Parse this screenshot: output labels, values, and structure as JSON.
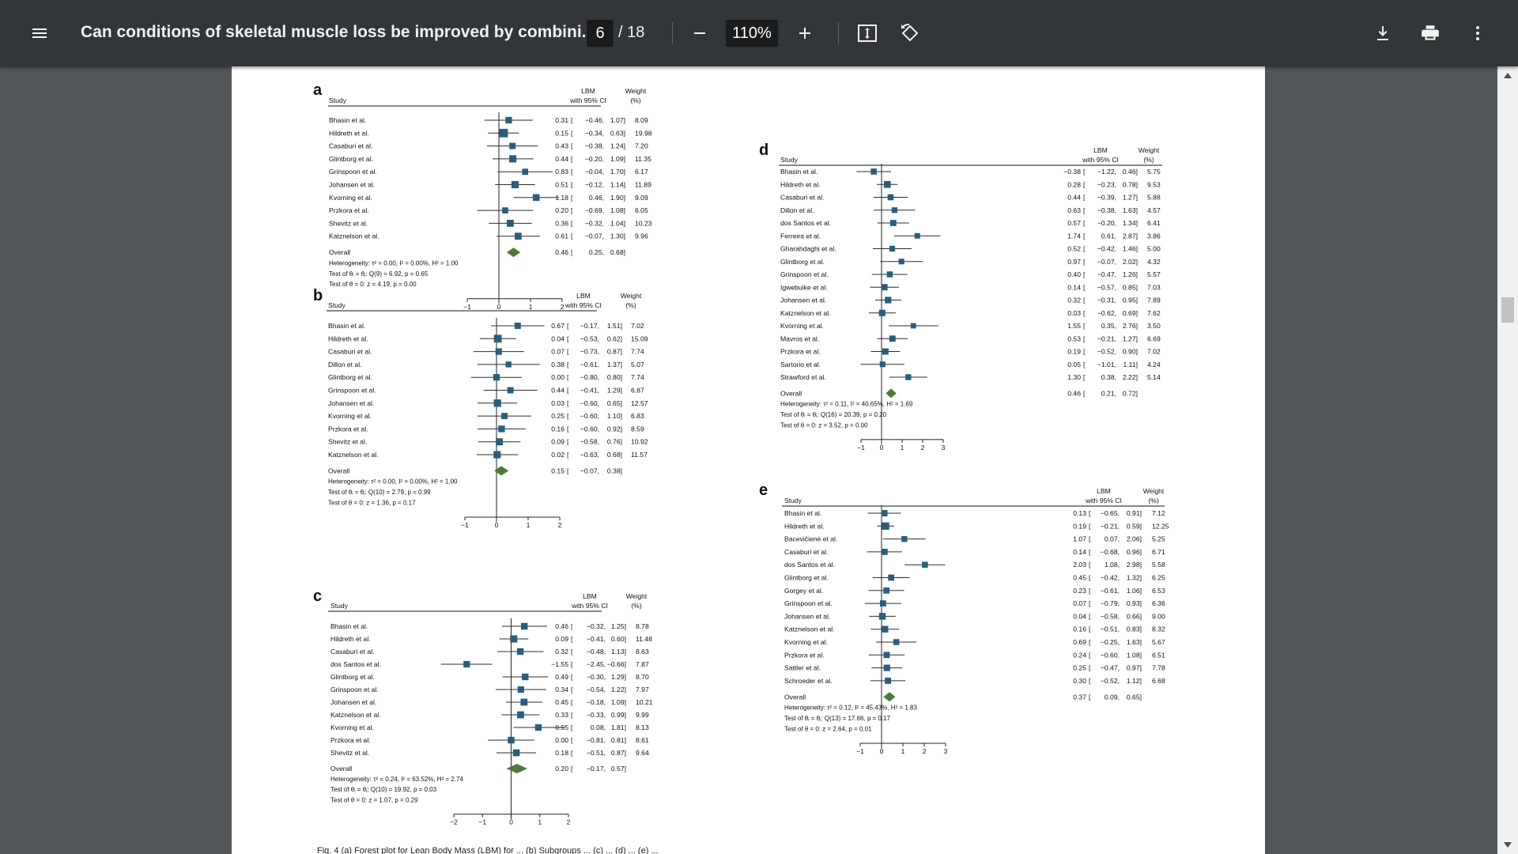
{
  "toolbar": {
    "title": "Can conditions of skeletal muscle loss be improved by combini...",
    "page_current": "6",
    "page_total": "/ 18",
    "zoom": "110%",
    "icons": [
      "menu-icon",
      "zoom-out-icon",
      "zoom-in-icon",
      "fit-page-icon",
      "rotate-icon",
      "download-icon",
      "print-icon",
      "more-vert-icon"
    ]
  },
  "chart_data": [
    {
      "type": "forest",
      "panel_label": "a",
      "study_header": "Study",
      "effect_header": "LBM",
      "ci_header": "with 95% CI",
      "weight_header": "Weight",
      "weight_unit": "(%)",
      "xlim": [
        -1,
        2
      ],
      "ticks": [
        -1,
        0,
        1,
        2
      ],
      "tick_labels": [
        "−1",
        "0",
        "1",
        "2"
      ],
      "studies": [
        {
          "name": "Bhasin et al.",
          "est": 0.31,
          "lo": -0.46,
          "hi": 1.07,
          "weight": "8.09",
          "est_txt": "0.31",
          "lo_txt": "−0.46,",
          "hi_txt": "1.07]"
        },
        {
          "name": "Hildreth et al.",
          "est": 0.15,
          "lo": -0.34,
          "hi": 0.63,
          "weight": "19.98",
          "est_txt": "0.15",
          "lo_txt": "−0.34,",
          "hi_txt": "0.63]"
        },
        {
          "name": "Casaburi et al.",
          "est": 0.43,
          "lo": -0.38,
          "hi": 1.24,
          "weight": "7.20",
          "est_txt": "0.43",
          "lo_txt": "−0.38,",
          "hi_txt": "1.24]"
        },
        {
          "name": "Glintborg et al.",
          "est": 0.44,
          "lo": -0.2,
          "hi": 1.09,
          "weight": "11.35",
          "est_txt": "0.44",
          "lo_txt": "−0.20,",
          "hi_txt": "1.09]"
        },
        {
          "name": "Grinspoon et al.",
          "est": 0.83,
          "lo": -0.04,
          "hi": 1.7,
          "weight": "6.17",
          "est_txt": "0.83",
          "lo_txt": "−0.04,",
          "hi_txt": "1.70]"
        },
        {
          "name": "Johansen et al.",
          "est": 0.51,
          "lo": -0.12,
          "hi": 1.14,
          "weight": "11.89",
          "est_txt": "0.51",
          "lo_txt": "−0.12,",
          "hi_txt": "1.14]"
        },
        {
          "name": "Kvorning et al.",
          "est": 1.18,
          "lo": 0.46,
          "hi": 1.9,
          "weight": "9.09",
          "est_txt": "1.18",
          "lo_txt": "0.46,",
          "hi_txt": "1.90]"
        },
        {
          "name": "Przkora et al.",
          "est": 0.2,
          "lo": -0.69,
          "hi": 1.08,
          "weight": "6.05",
          "est_txt": "0.20",
          "lo_txt": "−0.69,",
          "hi_txt": "1.08]"
        },
        {
          "name": "Shevitz et al.",
          "est": 0.36,
          "lo": -0.32,
          "hi": 1.04,
          "weight": "10.23",
          "est_txt": "0.36",
          "lo_txt": "−0.32,",
          "hi_txt": "1.04]"
        },
        {
          "name": "Katznelson et al.",
          "est": 0.61,
          "lo": -0.07,
          "hi": 1.3,
          "weight": "9.96",
          "est_txt": "0.61",
          "lo_txt": "−0.07,",
          "hi_txt": "1.30]"
        }
      ],
      "overall": {
        "name": "Overall",
        "est": 0.46,
        "lo": 0.25,
        "hi": 0.68,
        "est_txt": "0.46",
        "lo_txt": "0.25,",
        "hi_txt": "0.68]"
      },
      "stats": [
        "Heterogeneity: τ² = 0.00, I² = 0.00%, H² = 1.00",
        "Test of θᵢ = θⱼ: Q(9) = 6.92, p = 0.65",
        "Test of θ = 0: z = 4.19, p = 0.00"
      ]
    },
    {
      "type": "forest",
      "panel_label": "b",
      "study_header": "Study",
      "effect_header": "LBM",
      "ci_header": "with 95% CI",
      "weight_header": "Weight",
      "weight_unit": "(%)",
      "xlim": [
        -1,
        2
      ],
      "ticks": [
        -1,
        0,
        1,
        2
      ],
      "tick_labels": [
        "−1",
        "0",
        "1",
        "2"
      ],
      "studies": [
        {
          "name": "Bhasin et al.",
          "est": 0.67,
          "lo": -0.17,
          "hi": 1.51,
          "weight": "7.02",
          "est_txt": "0.67",
          "lo_txt": "−0.17,",
          "hi_txt": "1.51]"
        },
        {
          "name": "Hildreth et al.",
          "est": 0.04,
          "lo": -0.53,
          "hi": 0.62,
          "weight": "15.09",
          "est_txt": "0.04",
          "lo_txt": "−0.53,",
          "hi_txt": "0.62]"
        },
        {
          "name": "Casaburi et al.",
          "est": 0.07,
          "lo": -0.73,
          "hi": 0.87,
          "weight": "7.74",
          "est_txt": "0.07",
          "lo_txt": "−0.73,",
          "hi_txt": "0.87]"
        },
        {
          "name": "Dillon et al.",
          "est": 0.38,
          "lo": -0.61,
          "hi": 1.37,
          "weight": "5.07",
          "est_txt": "0.38",
          "lo_txt": "−0.61,",
          "hi_txt": "1.37]"
        },
        {
          "name": "Glintborg et al.",
          "est": 0.0,
          "lo": -0.8,
          "hi": 0.8,
          "weight": "7.74",
          "est_txt": "0.00",
          "lo_txt": "−0.80,",
          "hi_txt": "0.80]"
        },
        {
          "name": "Grinspoon et al.",
          "est": 0.44,
          "lo": -0.41,
          "hi": 1.29,
          "weight": "6.87",
          "est_txt": "0.44",
          "lo_txt": "−0.41,",
          "hi_txt": "1.29]"
        },
        {
          "name": "Johansen et al.",
          "est": 0.03,
          "lo": -0.6,
          "hi": 0.65,
          "weight": "12.57",
          "est_txt": "0.03",
          "lo_txt": "−0.60,",
          "hi_txt": "0.65]"
        },
        {
          "name": "Kvorning et al.",
          "est": 0.25,
          "lo": -0.6,
          "hi": 1.1,
          "weight": "6.83",
          "est_txt": "0.25",
          "lo_txt": "−0.60,",
          "hi_txt": "1.10]"
        },
        {
          "name": "Przkora et al.",
          "est": 0.16,
          "lo": -0.6,
          "hi": 0.92,
          "weight": "8.59",
          "est_txt": "0.16",
          "lo_txt": "−0.60,",
          "hi_txt": "0.92]"
        },
        {
          "name": "Shevitz et al.",
          "est": 0.09,
          "lo": -0.58,
          "hi": 0.76,
          "weight": "10.92",
          "est_txt": "0.09",
          "lo_txt": "−0.58,",
          "hi_txt": "0.76]"
        },
        {
          "name": "Katznelson et al.",
          "est": 0.02,
          "lo": -0.63,
          "hi": 0.68,
          "weight": "11.57",
          "est_txt": "0.02",
          "lo_txt": "−0.63,",
          "hi_txt": "0.68]"
        }
      ],
      "overall": {
        "name": "Overall",
        "est": 0.15,
        "lo": -0.07,
        "hi": 0.38,
        "est_txt": "0.15",
        "lo_txt": "−0.07,",
        "hi_txt": "0.38]"
      },
      "stats": [
        "Heterogeneity: τ² = 0.00, I² = 0.00%, H² = 1.00",
        "Test of θᵢ = θⱼ: Q(10) = 2.79, p = 0.99",
        "Test of θ = 0: z = 1.36, p = 0.17"
      ]
    },
    {
      "type": "forest",
      "panel_label": "c",
      "study_header": "Study",
      "effect_header": "LBM",
      "ci_header": "with 95% CI",
      "weight_header": "Weight",
      "weight_unit": "(%)",
      "xlim": [
        -2,
        2
      ],
      "ticks": [
        -2,
        -1,
        0,
        1,
        2
      ],
      "tick_labels": [
        "−2",
        "−1",
        "0",
        "1",
        "2"
      ],
      "studies": [
        {
          "name": "Bhasin et al.",
          "est": 0.46,
          "lo": -0.32,
          "hi": 1.25,
          "weight": "8.78",
          "est_txt": "0.46",
          "lo_txt": "−0.32,",
          "hi_txt": "1.25]"
        },
        {
          "name": "Hildreth et al.",
          "est": 0.09,
          "lo": -0.41,
          "hi": 0.6,
          "weight": "11.48",
          "est_txt": "0.09",
          "lo_txt": "−0.41,",
          "hi_txt": "0.60]"
        },
        {
          "name": "Casaburi et al.",
          "est": 0.32,
          "lo": -0.48,
          "hi": 1.13,
          "weight": "8.63",
          "est_txt": "0.32",
          "lo_txt": "−0.48,",
          "hi_txt": "1.13]"
        },
        {
          "name": "dos Santos et al.",
          "est": -1.55,
          "lo": -2.45,
          "hi": -0.66,
          "weight": "7.87",
          "est_txt": "−1.55",
          "lo_txt": "−2.45,",
          "hi_txt": "−0.66]"
        },
        {
          "name": "Glintborg et al.",
          "est": 0.49,
          "lo": -0.3,
          "hi": 1.29,
          "weight": "8.70",
          "est_txt": "0.49",
          "lo_txt": "−0.30,",
          "hi_txt": "1.29]"
        },
        {
          "name": "Grinspoon et al.",
          "est": 0.34,
          "lo": -0.54,
          "hi": 1.22,
          "weight": "7.97",
          "est_txt": "0.34",
          "lo_txt": "−0.54,",
          "hi_txt": "1.22]"
        },
        {
          "name": "Johansen et al.",
          "est": 0.45,
          "lo": -0.18,
          "hi": 1.09,
          "weight": "10.21",
          "est_txt": "0.45",
          "lo_txt": "−0.18,",
          "hi_txt": "1.09]"
        },
        {
          "name": "Katznelson et al.",
          "est": 0.33,
          "lo": -0.33,
          "hi": 0.99,
          "weight": "9.99",
          "est_txt": "0.33",
          "lo_txt": "−0.33,",
          "hi_txt": "0.99]"
        },
        {
          "name": "Kvorning et al.",
          "est": 0.95,
          "lo": 0.08,
          "hi": 1.81,
          "weight": "8.13",
          "est_txt": "0.95",
          "lo_txt": "0.08,",
          "hi_txt": "1.81]"
        },
        {
          "name": "Przkora et al.",
          "est": 0.0,
          "lo": -0.81,
          "hi": 0.81,
          "weight": "8.61",
          "est_txt": "0.00",
          "lo_txt": "−0.81,",
          "hi_txt": "0.81]"
        },
        {
          "name": "Shevitz et al.",
          "est": 0.18,
          "lo": -0.51,
          "hi": 0.87,
          "weight": "9.64",
          "est_txt": "0.18",
          "lo_txt": "−0.51,",
          "hi_txt": "0.87]"
        }
      ],
      "overall": {
        "name": "Overall",
        "est": 0.2,
        "lo": -0.17,
        "hi": 0.57,
        "est_txt": "0.20",
        "lo_txt": "−0.17,",
        "hi_txt": "0.57]"
      },
      "stats": [
        "Heterogeneity: τ² = 0.24, I² = 63.52%, H² = 2.74",
        "Test of θᵢ = θⱼ: Q(10) = 19.92, p = 0.03",
        "Test of θ = 0: z = 1.07, p = 0.29"
      ]
    },
    {
      "type": "forest",
      "panel_label": "d",
      "study_header": "Study",
      "effect_header": "LBM",
      "ci_header": "with 95% CI",
      "weight_header": "Weight",
      "weight_unit": "(%)",
      "xlim": [
        -1,
        3
      ],
      "ticks": [
        -1,
        0,
        1,
        2,
        3
      ],
      "tick_labels": [
        "−1",
        "0",
        "1",
        "2",
        "3"
      ],
      "studies": [
        {
          "name": "Bhasin et al.",
          "est": -0.38,
          "lo": -1.22,
          "hi": 0.46,
          "weight": "5.75",
          "est_txt": "−0.38",
          "lo_txt": "−1.22,",
          "hi_txt": "0.46]"
        },
        {
          "name": "Hildreth et al.",
          "est": 0.28,
          "lo": -0.23,
          "hi": 0.78,
          "weight": "9.53",
          "est_txt": "0.28",
          "lo_txt": "−0.23,",
          "hi_txt": "0.78]"
        },
        {
          "name": "Casaburi et al.",
          "est": 0.44,
          "lo": -0.39,
          "hi": 1.27,
          "weight": "5.88",
          "est_txt": "0.44",
          "lo_txt": "−0.39,",
          "hi_txt": "1.27]"
        },
        {
          "name": "Dillon et al.",
          "est": 0.63,
          "lo": -0.38,
          "hi": 1.63,
          "weight": "4.57",
          "est_txt": "0.63",
          "lo_txt": "−0.38,",
          "hi_txt": "1.63]"
        },
        {
          "name": "dos Santos et al.",
          "est": 0.57,
          "lo": -0.2,
          "hi": 1.34,
          "weight": "6.41",
          "est_txt": "0.57",
          "lo_txt": "−0.20,",
          "hi_txt": "1.34]"
        },
        {
          "name": "Ferreira et al.",
          "est": 1.74,
          "lo": 0.61,
          "hi": 2.87,
          "weight": "3.86",
          "est_txt": "1.74",
          "lo_txt": "0.61,",
          "hi_txt": "2.87]"
        },
        {
          "name": "Gharahdaghi et al.",
          "est": 0.52,
          "lo": -0.42,
          "hi": 1.46,
          "weight": "5.00",
          "est_txt": "0.52",
          "lo_txt": "−0.42,",
          "hi_txt": "1.46]"
        },
        {
          "name": "Glintborg et al.",
          "est": 0.97,
          "lo": -0.07,
          "hi": 2.02,
          "weight": "4.32",
          "est_txt": "0.97",
          "lo_txt": "−0.07,",
          "hi_txt": "2.02]"
        },
        {
          "name": "Grinspoon et al.",
          "est": 0.4,
          "lo": -0.47,
          "hi": 1.26,
          "weight": "5.57",
          "est_txt": "0.40",
          "lo_txt": "−0.47,",
          "hi_txt": "1.26]"
        },
        {
          "name": "Igwebuike et al.",
          "est": 0.14,
          "lo": -0.57,
          "hi": 0.85,
          "weight": "7.03",
          "est_txt": "0.14",
          "lo_txt": "−0.57,",
          "hi_txt": "0.85]"
        },
        {
          "name": "Johansen et al.",
          "est": 0.32,
          "lo": -0.31,
          "hi": 0.95,
          "weight": "7.89",
          "est_txt": "0.32",
          "lo_txt": "−0.31,",
          "hi_txt": "0.95]"
        },
        {
          "name": "Katznelson et al.",
          "est": 0.03,
          "lo": -0.62,
          "hi": 0.69,
          "weight": "7.62",
          "est_txt": "0.03",
          "lo_txt": "−0.62,",
          "hi_txt": "0.69]"
        },
        {
          "name": "Kvorning et al.",
          "est": 1.55,
          "lo": 0.35,
          "hi": 2.76,
          "weight": "3.50",
          "est_txt": "1.55",
          "lo_txt": "0.35,",
          "hi_txt": "2.76]"
        },
        {
          "name": "Mavros et al.",
          "est": 0.53,
          "lo": -0.21,
          "hi": 1.27,
          "weight": "6.69",
          "est_txt": "0.53",
          "lo_txt": "−0.21,",
          "hi_txt": "1.27]"
        },
        {
          "name": "Przkora et al.",
          "est": 0.19,
          "lo": -0.52,
          "hi": 0.9,
          "weight": "7.02",
          "est_txt": "0.19",
          "lo_txt": "−0.52,",
          "hi_txt": "0.90]"
        },
        {
          "name": "Sartorio et al.",
          "est": 0.05,
          "lo": -1.01,
          "hi": 1.11,
          "weight": "4.24",
          "est_txt": "0.05",
          "lo_txt": "−1.01,",
          "hi_txt": "1.11]"
        },
        {
          "name": "Strawford et al.",
          "est": 1.3,
          "lo": 0.38,
          "hi": 2.22,
          "weight": "5.14",
          "est_txt": "1.30",
          "lo_txt": "0.38,",
          "hi_txt": "2.22]"
        }
      ],
      "overall": {
        "name": "Overall",
        "est": 0.46,
        "lo": 0.21,
        "hi": 0.72,
        "est_txt": "0.46",
        "lo_txt": "0.21,",
        "hi_txt": "0.72]"
      },
      "stats": [
        "Heterogeneity: τ² = 0.11, I² = 40.65%, H² = 1.69",
        "Test of θᵢ = θⱼ: Q(16) = 20.39, p = 0.20",
        "Test of θ = 0: z = 3.52, p = 0.00"
      ]
    },
    {
      "type": "forest",
      "panel_label": "e",
      "study_header": "Study",
      "effect_header": "LBM",
      "ci_header": "with 95% CI",
      "weight_header": "Weight",
      "weight_unit": "(%)",
      "xlim": [
        -1,
        3
      ],
      "ticks": [
        -1,
        0,
        1,
        2,
        3
      ],
      "tick_labels": [
        "−1",
        "0",
        "1",
        "2",
        "3"
      ],
      "studies": [
        {
          "name": "Bhasin et al.",
          "est": 0.13,
          "lo": -0.65,
          "hi": 0.91,
          "weight": "7.12",
          "est_txt": "0.13",
          "lo_txt": "−0.65,",
          "hi_txt": "0.91]"
        },
        {
          "name": "Hildreth et al.",
          "est": 0.19,
          "lo": -0.21,
          "hi": 0.59,
          "weight": "12.25",
          "est_txt": "0.19",
          "lo_txt": "−0.21,",
          "hi_txt": "0.59]"
        },
        {
          "name": "Bacevičienė et al.",
          "est": 1.07,
          "lo": 0.07,
          "hi": 2.06,
          "weight": "5.25",
          "est_txt": "1.07",
          "lo_txt": "0.07,",
          "hi_txt": "2.06]"
        },
        {
          "name": "Casaburi et al.",
          "est": 0.14,
          "lo": -0.68,
          "hi": 0.96,
          "weight": "6.71",
          "est_txt": "0.14",
          "lo_txt": "−0.68,",
          "hi_txt": "0.96]"
        },
        {
          "name": "dos Santos et al.",
          "est": 2.03,
          "lo": 1.08,
          "hi": 2.98,
          "weight": "5.58",
          "est_txt": "2.03",
          "lo_txt": "1.08,",
          "hi_txt": "2.98]"
        },
        {
          "name": "Glintborg et al.",
          "est": 0.45,
          "lo": -0.42,
          "hi": 1.32,
          "weight": "6.25",
          "est_txt": "0.45",
          "lo_txt": "−0.42,",
          "hi_txt": "1.32]"
        },
        {
          "name": "Gorgey et al.",
          "est": 0.23,
          "lo": -0.61,
          "hi": 1.06,
          "weight": "6.53",
          "est_txt": "0.23",
          "lo_txt": "−0.61,",
          "hi_txt": "1.06]"
        },
        {
          "name": "Grinspoon et al.",
          "est": 0.07,
          "lo": -0.79,
          "hi": 0.93,
          "weight": "6.36",
          "est_txt": "0.07",
          "lo_txt": "−0.79,",
          "hi_txt": "0.93]"
        },
        {
          "name": "Johansen et al.",
          "est": 0.04,
          "lo": -0.58,
          "hi": 0.66,
          "weight": "9.00",
          "est_txt": "0.04",
          "lo_txt": "−0.58,",
          "hi_txt": "0.66]"
        },
        {
          "name": "Katznelson et al.",
          "est": 0.16,
          "lo": -0.51,
          "hi": 0.83,
          "weight": "8.32",
          "est_txt": "0.16",
          "lo_txt": "−0.51,",
          "hi_txt": "0.83]"
        },
        {
          "name": "Kvorning et al.",
          "est": 0.69,
          "lo": -0.25,
          "hi": 1.63,
          "weight": "5.67",
          "est_txt": "0.69",
          "lo_txt": "−0.25,",
          "hi_txt": "1.63]"
        },
        {
          "name": "Przkora et al.",
          "est": 0.24,
          "lo": -0.6,
          "hi": 1.08,
          "weight": "6.51",
          "est_txt": "0.24",
          "lo_txt": "−0.60,",
          "hi_txt": "1.08]"
        },
        {
          "name": "Sattler et al.",
          "est": 0.25,
          "lo": -0.47,
          "hi": 0.97,
          "weight": "7.78",
          "est_txt": "0.25",
          "lo_txt": "−0.47,",
          "hi_txt": "0.97]"
        },
        {
          "name": "Schroeder et al.",
          "est": 0.3,
          "lo": -0.52,
          "hi": 1.12,
          "weight": "6.68",
          "est_txt": "0.30",
          "lo_txt": "−0.52,",
          "hi_txt": "1.12]"
        }
      ],
      "overall": {
        "name": "Overall",
        "est": 0.37,
        "lo": 0.09,
        "hi": 0.65,
        "est_txt": "0.37",
        "lo_txt": "0.09,",
        "hi_txt": "0.65]"
      },
      "stats": [
        "Heterogeneity: τ² = 0.12, I² = 45.43%, H² = 1.83",
        "Test of θᵢ = θⱼ: Q(13) = 17.66, p = 0.17",
        "Test of θ = 0: z = 2.64, p = 0.01"
      ]
    }
  ],
  "caption": "Fig. 4 (a) Forest plot for Lean Body Mass (LBM) for ... (b) Subgroups ... (c) ... (d) ... (e) ...",
  "colors": {
    "marker": "#2a5d7c",
    "diamond": "#4d7a3a",
    "toolbar": "#323639",
    "viewer_bg": "#525659"
  }
}
